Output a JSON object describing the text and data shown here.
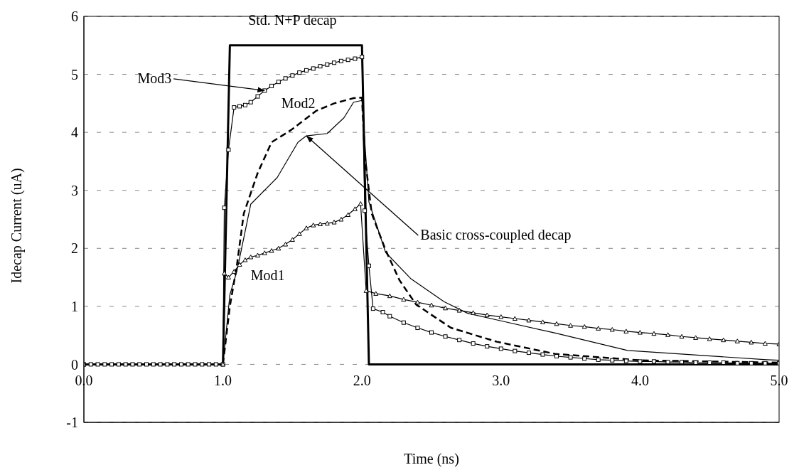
{
  "chart_data": {
    "type": "line",
    "xlabel": "Time (ns)",
    "ylabel": "Idecap Current (uA)",
    "xlim": [
      0,
      5
    ],
    "xticks": [
      {
        "value": 0,
        "label": "0.0"
      },
      {
        "value": 1,
        "label": "1.0"
      },
      {
        "value": 2,
        "label": "2.0"
      },
      {
        "value": 3,
        "label": "3.0"
      },
      {
        "value": 4,
        "label": "4.0"
      },
      {
        "value": 5,
        "label": "5.0"
      }
    ],
    "ylim": [
      -1,
      6
    ],
    "yticks": [
      -1,
      0,
      1,
      2,
      3,
      4,
      5,
      6
    ],
    "grid": "y",
    "legend": false,
    "series": [
      {
        "name": "Std. N+P decap",
        "color": "#000000",
        "marker": "none",
        "line_style": "solid",
        "x": [
          0,
          1,
          1.05,
          2,
          2.05,
          5
        ],
        "values": [
          0,
          0,
          5.5,
          5.5,
          0,
          0
        ]
      },
      {
        "name": "Mod3",
        "color": "#000000",
        "marker": "square",
        "line_style": "solid",
        "x": [
          0,
          0.05,
          0.1,
          0.15,
          0.2,
          0.25,
          0.3,
          0.35,
          0.4,
          0.45,
          0.5,
          0.55,
          0.6,
          0.65,
          0.7,
          0.75,
          0.8,
          0.85,
          0.9,
          0.95,
          1,
          1.01,
          1.04,
          1.08,
          1.12,
          1.16,
          1.2,
          1.25,
          1.3,
          1.35,
          1.4,
          1.45,
          1.5,
          1.55,
          1.6,
          1.65,
          1.7,
          1.75,
          1.8,
          1.85,
          1.9,
          1.95,
          2,
          2.02,
          2.05,
          2.08,
          2.15,
          2.2,
          2.3,
          2.4,
          2.5,
          2.6,
          2.7,
          2.8,
          2.9,
          3,
          3.1,
          3.2,
          3.3,
          3.4,
          3.5,
          3.6,
          3.7,
          3.8,
          3.9,
          4,
          4.1,
          4.2,
          4.3,
          4.4,
          4.5,
          4.6,
          4.7,
          4.8,
          4.9,
          5
        ],
        "values": [
          0,
          0,
          0,
          0,
          0,
          0,
          0,
          0,
          0,
          0,
          0,
          0,
          0,
          0,
          0,
          0,
          0,
          0,
          0,
          0,
          0,
          2.7,
          3.7,
          4.43,
          4.45,
          4.47,
          4.52,
          4.62,
          4.72,
          4.8,
          4.87,
          4.93,
          4.98,
          5.03,
          5.07,
          5.1,
          5.14,
          5.17,
          5.2,
          5.23,
          5.25,
          5.27,
          5.3,
          2.65,
          1.7,
          0.96,
          0.9,
          0.83,
          0.72,
          0.63,
          0.55,
          0.48,
          0.42,
          0.36,
          0.31,
          0.27,
          0.23,
          0.2,
          0.17,
          0.14,
          0.12,
          0.1,
          0.08,
          0.07,
          0.06,
          0.05,
          0.05,
          0.04,
          0.04,
          0.03,
          0.03,
          0.03,
          0.02,
          0.02,
          0.02,
          0.02
        ]
      },
      {
        "name": "Mod2",
        "color": "#000000",
        "marker": "none",
        "line_style": "dashed",
        "x": [
          0,
          1,
          1.05,
          1.1,
          1.15,
          1.25,
          1.35,
          1.49,
          1.67,
          1.8,
          1.94,
          2,
          2.02,
          2.07,
          2.17,
          2.27,
          2.39,
          2.64,
          2.97,
          3.39,
          4,
          5
        ],
        "values": [
          0,
          0,
          1,
          1.7,
          2.6,
          3.3,
          3.83,
          4.04,
          4.37,
          4.5,
          4.59,
          4.6,
          3.6,
          2.6,
          1.97,
          1.45,
          1.03,
          0.63,
          0.39,
          0.18,
          0.07,
          0.03
        ]
      },
      {
        "name": "Basic cross-coupled decap",
        "color": "#000000",
        "marker": "none",
        "line_style": "solid",
        "x": [
          0,
          1,
          1.05,
          1.1,
          1.2,
          1.39,
          1.54,
          1.6,
          1.75,
          1.87,
          1.94,
          2,
          2.05,
          2.17,
          2.35,
          2.59,
          2.76,
          3,
          3.39,
          3.91,
          4.91,
          5
        ],
        "values": [
          0,
          0,
          1.2,
          1.6,
          2.76,
          3.22,
          3.83,
          3.94,
          3.98,
          4.25,
          4.52,
          4.55,
          2.8,
          1.93,
          1.48,
          1.08,
          0.88,
          0.75,
          0.54,
          0.24,
          0.08,
          0.07
        ]
      },
      {
        "name": "Mod1",
        "color": "#000000",
        "marker": "triangle",
        "line_style": "solid",
        "x": [
          0,
          1,
          1.01,
          1.04,
          1.08,
          1.12,
          1.16,
          1.2,
          1.25,
          1.3,
          1.35,
          1.4,
          1.45,
          1.5,
          1.55,
          1.6,
          1.65,
          1.7,
          1.75,
          1.8,
          1.85,
          1.9,
          1.95,
          1.99,
          2.03,
          2.1,
          2.2,
          2.3,
          2.4,
          2.5,
          2.6,
          2.7,
          2.8,
          2.9,
          3,
          3.1,
          3.2,
          3.3,
          3.4,
          3.5,
          3.6,
          3.7,
          3.8,
          3.9,
          4,
          4.1,
          4.2,
          4.3,
          4.4,
          4.5,
          4.6,
          4.7,
          4.8,
          4.9,
          5
        ],
        "values": [
          0,
          0,
          1.57,
          1.5,
          1.6,
          1.72,
          1.8,
          1.85,
          1.88,
          1.92,
          1.96,
          2,
          2.07,
          2.15,
          2.25,
          2.35,
          2.4,
          2.42,
          2.43,
          2.45,
          2.5,
          2.58,
          2.68,
          2.77,
          1.27,
          1.22,
          1.18,
          1.12,
          1.07,
          1.02,
          0.97,
          0.93,
          0.89,
          0.85,
          0.82,
          0.79,
          0.76,
          0.73,
          0.7,
          0.67,
          0.65,
          0.62,
          0.6,
          0.57,
          0.55,
          0.53,
          0.51,
          0.48,
          0.46,
          0.44,
          0.42,
          0.4,
          0.38,
          0.36,
          0.35
        ]
      }
    ]
  }
}
